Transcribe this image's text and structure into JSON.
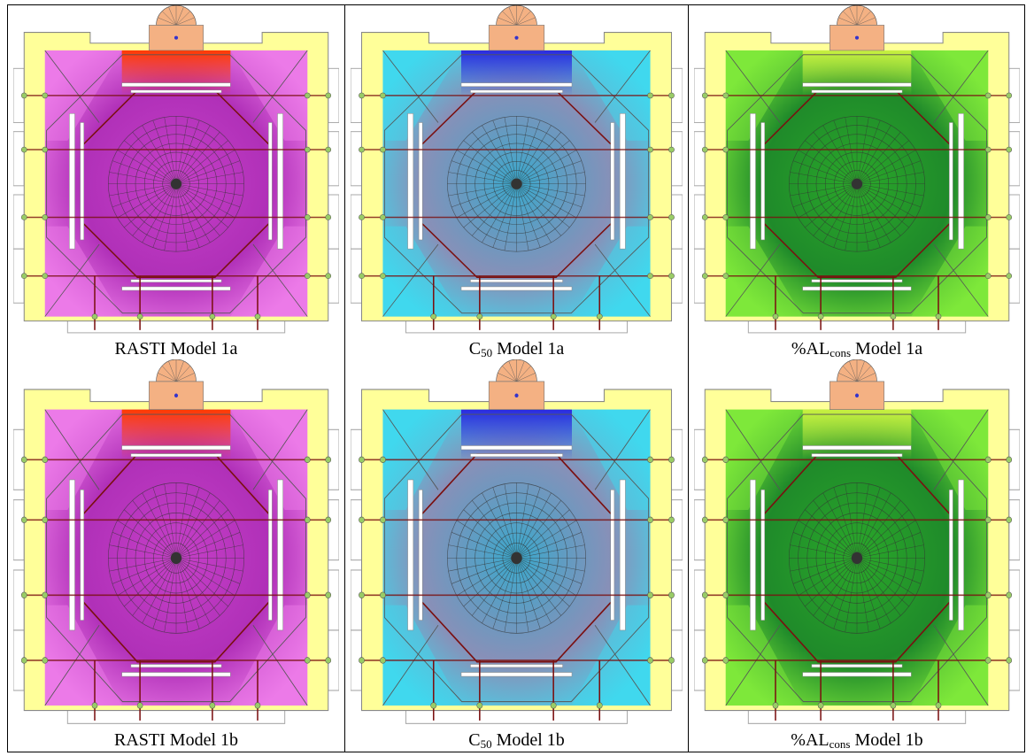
{
  "figure": {
    "rows": [
      [
        {
          "caption": [
            {
              "text": "RASTI Model 1a"
            }
          ]
        },
        {
          "caption": [
            {
              "text": "C"
            },
            {
              "sub": "50"
            },
            {
              "text": " Model 1a"
            }
          ]
        },
        {
          "caption": [
            {
              "text": "%AL"
            },
            {
              "sub": "cons"
            },
            {
              "text": " Model 1a"
            }
          ]
        }
      ],
      [
        {
          "caption": [
            {
              "text": "RASTI Model 1b"
            }
          ]
        },
        {
          "caption": [
            {
              "text": "C"
            },
            {
              "sub": "50"
            },
            {
              "text": " Model 1b"
            }
          ]
        },
        {
          "caption": [
            {
              "text": "%AL"
            },
            {
              "sub": "cons"
            },
            {
              "text": " Model 1b"
            }
          ]
        }
      ]
    ]
  }
}
